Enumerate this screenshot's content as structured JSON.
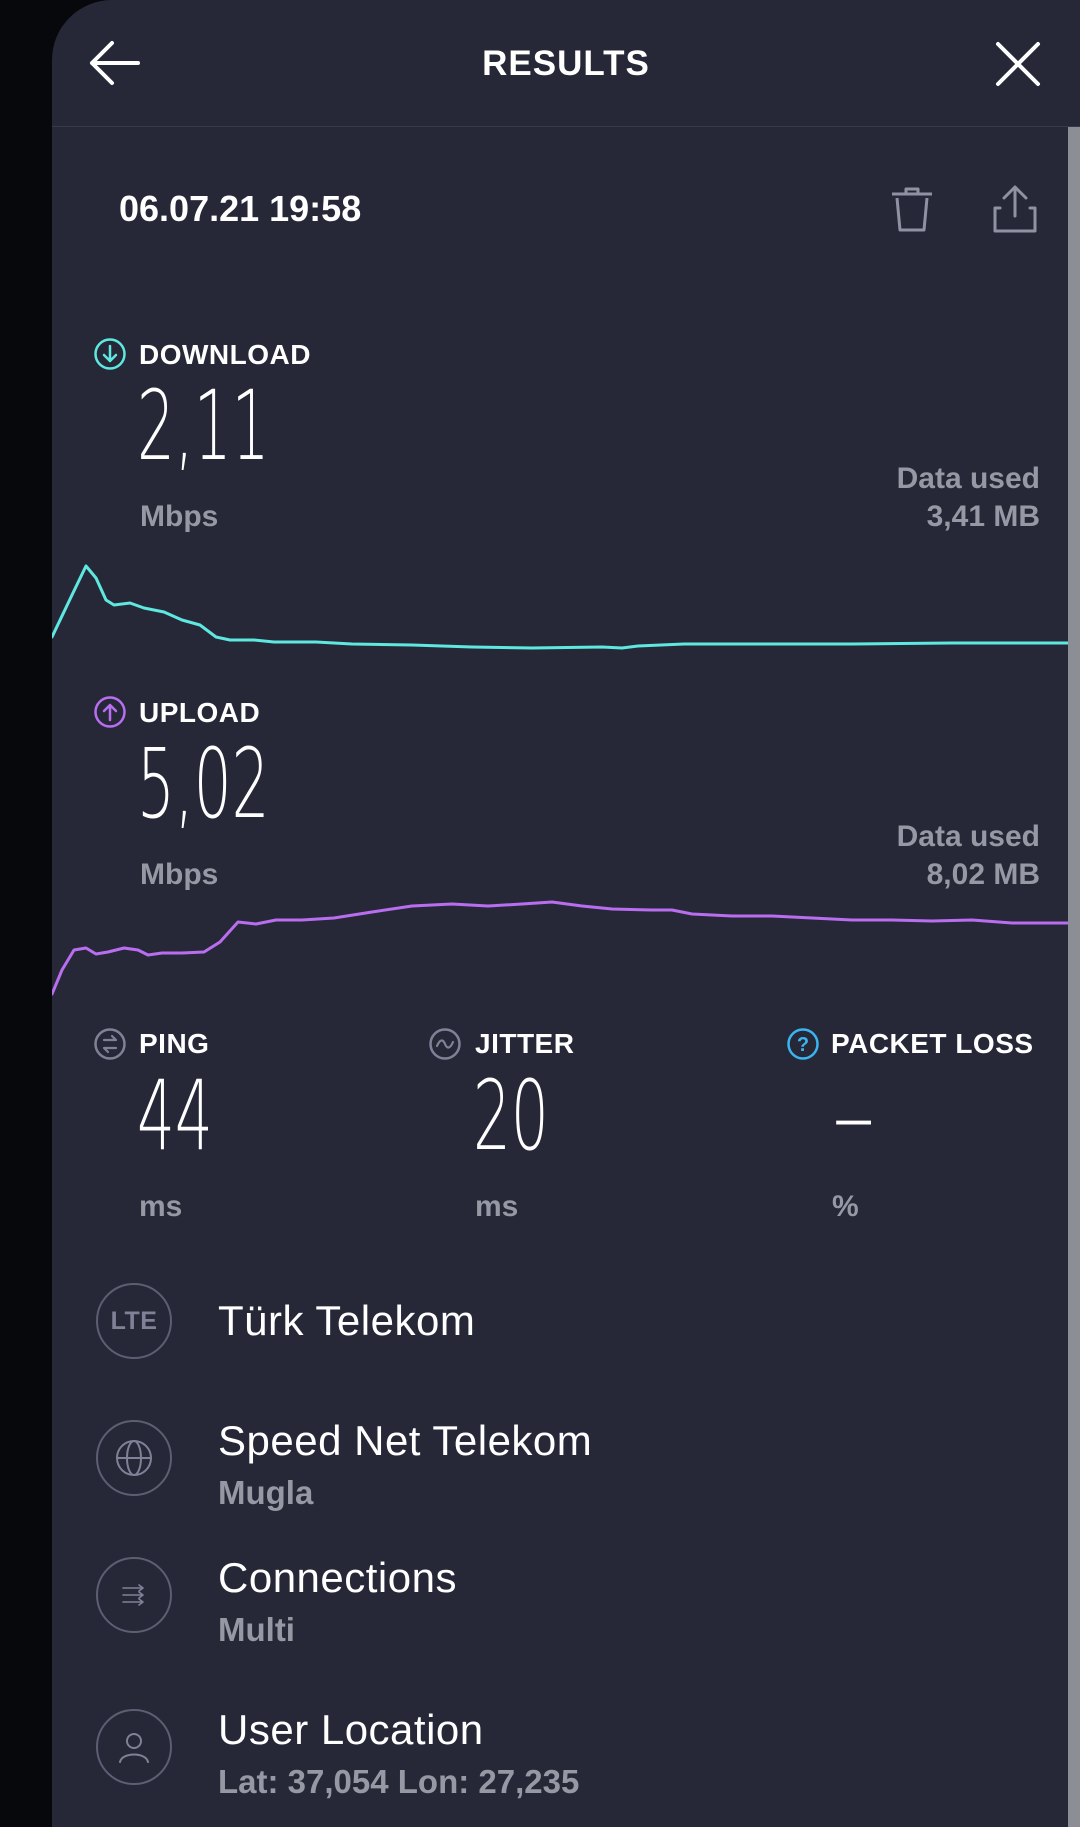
{
  "header": {
    "title": "RESULTS"
  },
  "test_date": "06.07.21 19:58",
  "download": {
    "label": "DOWNLOAD",
    "value": "2,11",
    "unit": "Mbps",
    "data_used_label": "Data used",
    "data_used_value": "3,41 MB",
    "color": "#5ee8e0"
  },
  "upload": {
    "label": "UPLOAD",
    "value": "5,02",
    "unit": "Mbps",
    "data_used_label": "Data used",
    "data_used_value": "8,02 MB",
    "color": "#b96ef0"
  },
  "ping": {
    "label": "PING",
    "value": "44",
    "unit": "ms"
  },
  "jitter": {
    "label": "JITTER",
    "value": "20",
    "unit": "ms"
  },
  "packet_loss": {
    "label": "PACKET LOSS",
    "value": "–",
    "unit": "%"
  },
  "provider": {
    "badge": "LTE",
    "name": "Türk Telekom"
  },
  "server": {
    "name": "Speed Net Telekom",
    "location": "Mugla"
  },
  "connections": {
    "label": "Connections",
    "value": "Multi"
  },
  "user_location": {
    "label": "User Location",
    "value": "Lat: 37,054 Lon: 27,235"
  },
  "icons": {
    "back": "arrow-left-icon",
    "close": "close-icon",
    "delete": "trash-icon",
    "share": "share-icon",
    "download": "download-circle-icon",
    "upload": "upload-circle-icon",
    "ping": "ping-icon",
    "jitter": "jitter-icon",
    "packet_loss": "question-circle-icon",
    "server": "globe-icon",
    "connections": "connections-icon",
    "user": "user-icon"
  },
  "colors": {
    "background": "#262838",
    "packet_loss_icon": "#3ab5f0",
    "muted_text": "#9698a4"
  }
}
